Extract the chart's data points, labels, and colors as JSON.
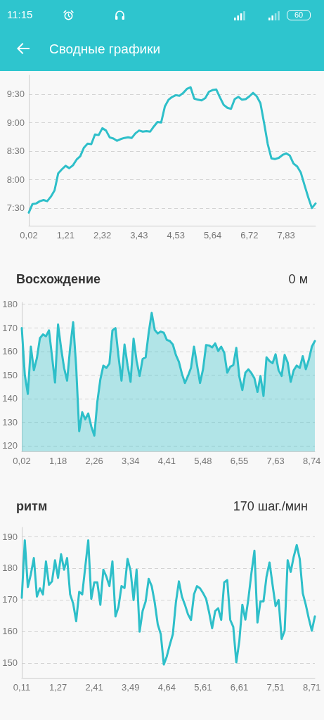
{
  "chart_data": [
    {
      "type": "line",
      "title": "Сводные графики",
      "annotations": [
        "11:15",
        "60"
      ],
      "categories": [
        "0,02",
        null,
        null,
        null,
        null,
        null,
        null,
        null,
        null,
        null,
        "1,21",
        null,
        null,
        null,
        null,
        null,
        null,
        null,
        null,
        null,
        "2,32",
        null,
        null,
        null,
        null,
        null,
        null,
        null,
        null,
        null,
        "3,43",
        null,
        null,
        null,
        null,
        null,
        null,
        null,
        null,
        null,
        "4,53",
        null,
        null,
        null,
        null,
        null,
        null,
        null,
        null,
        null,
        "5,64",
        null,
        null,
        null,
        null,
        null,
        null,
        null,
        null,
        null,
        "6,72",
        null,
        null,
        null,
        null,
        null,
        null,
        null,
        null,
        null,
        "7,83",
        null,
        null,
        null,
        null,
        null,
        null,
        null,
        null
      ],
      "values": [
        7.42,
        7.57,
        7.58,
        7.62,
        7.64,
        7.62,
        7.7,
        7.81,
        8.11,
        8.18,
        8.24,
        8.2,
        8.25,
        8.35,
        8.41,
        8.56,
        8.63,
        8.62,
        8.79,
        8.78,
        8.9,
        8.86,
        8.74,
        8.72,
        8.68,
        8.71,
        8.73,
        8.74,
        8.73,
        8.81,
        8.86,
        8.84,
        8.85,
        8.84,
        8.93,
        9.01,
        9.0,
        9.28,
        9.4,
        9.45,
        9.48,
        9.47,
        9.52,
        9.59,
        9.62,
        9.42,
        9.4,
        9.39,
        9.43,
        9.54,
        9.57,
        9.58,
        9.44,
        9.31,
        9.26,
        9.24,
        9.41,
        9.45,
        9.4,
        9.41,
        9.46,
        9.52,
        9.46,
        9.34,
        8.99,
        8.62,
        8.37,
        8.36,
        8.38,
        8.43,
        8.46,
        8.42,
        8.28,
        8.23,
        8.12,
        7.9,
        7.69,
        7.5,
        7.58
      ],
      "color": "#2ebfc9",
      "ylim": [
        7.19,
        9.83
      ],
      "yticks": [
        {
          "value": 7.5,
          "label": "7:30"
        },
        {
          "value": 8,
          "label": "8:00"
        },
        {
          "value": 8.5,
          "label": "8:30"
        },
        {
          "value": 9,
          "label": "9:00"
        },
        {
          "value": 9.5,
          "label": "9:30"
        }
      ],
      "grid": "y",
      "marker": "none",
      "line_style": "solid"
    },
    {
      "type": "area",
      "title": "Восхождение",
      "subtitle": "0 м",
      "categories": [
        "0,02",
        null,
        null,
        null,
        null,
        null,
        null,
        null,
        null,
        null,
        null,
        null,
        "1,18",
        null,
        null,
        null,
        null,
        null,
        null,
        null,
        null,
        null,
        null,
        null,
        "2,26",
        null,
        null,
        null,
        null,
        null,
        null,
        null,
        null,
        null,
        null,
        null,
        "3,34",
        null,
        null,
        null,
        null,
        null,
        null,
        null,
        null,
        null,
        null,
        null,
        "4,41",
        null,
        null,
        null,
        null,
        null,
        null,
        null,
        null,
        null,
        null,
        null,
        "5,48",
        null,
        null,
        null,
        null,
        null,
        null,
        null,
        null,
        null,
        null,
        null,
        "6,55",
        null,
        null,
        null,
        null,
        null,
        null,
        null,
        null,
        null,
        null,
        null,
        "7,63",
        null,
        null,
        null,
        null,
        null,
        null,
        null,
        null,
        null,
        null,
        null,
        "8,74",
        null
      ],
      "values": [
        169.9,
        150.0,
        142.0,
        162.0,
        152.0,
        157.2,
        165.6,
        167.2,
        166.4,
        168.9,
        158.0,
        146.8,
        171.4,
        161.5,
        153.0,
        147.6,
        161.5,
        172.4,
        153.5,
        126.2,
        134.2,
        131.2,
        133.7,
        128.2,
        124.3,
        138.6,
        148.1,
        154.0,
        153.0,
        154.8,
        168.9,
        169.9,
        158.0,
        147.6,
        162.9,
        154.2,
        147.1,
        165.4,
        156.0,
        149.6,
        156.8,
        157.5,
        167.9,
        176.3,
        169.1,
        167.6,
        168.4,
        167.9,
        164.9,
        164.4,
        162.9,
        158.5,
        155.6,
        150.5,
        146.6,
        149.6,
        153.0,
        162.0,
        154.3,
        146.6,
        152.5,
        162.7,
        162.5,
        161.7,
        163.4,
        160.2,
        162.0,
        159.5,
        151.0,
        153.5,
        154.2,
        161.5,
        149.3,
        143.6,
        151.0,
        152.4,
        150.8,
        148.6,
        142.8,
        149.6,
        141.1,
        157.5,
        155.9,
        155.0,
        158.8,
        152.0,
        149.6,
        158.5,
        155.3,
        147.1,
        152.0,
        154.0,
        153.0,
        158.0,
        152.5,
        156.5,
        162.0,
        164.4
      ],
      "color": "#2ebfc9",
      "ylim": [
        117.6,
        180.8
      ],
      "yticks": [
        120,
        130,
        140,
        150,
        160,
        170,
        180
      ],
      "grid": "y",
      "marker": "none",
      "line_style": "solid"
    },
    {
      "type": "line",
      "title": "ритм",
      "subtitle": "170 шаг./мин",
      "categories": [
        "0,11",
        null,
        null,
        null,
        null,
        null,
        null,
        null,
        null,
        null,
        null,
        null,
        "1,27",
        null,
        null,
        null,
        null,
        null,
        null,
        null,
        null,
        null,
        null,
        null,
        "2,41",
        null,
        null,
        null,
        null,
        null,
        null,
        null,
        null,
        null,
        null,
        null,
        "3,49",
        null,
        null,
        null,
        null,
        null,
        null,
        null,
        null,
        null,
        null,
        null,
        "4,64",
        null,
        null,
        null,
        null,
        null,
        null,
        null,
        null,
        null,
        null,
        null,
        "5,61",
        null,
        null,
        null,
        null,
        null,
        null,
        null,
        null,
        null,
        null,
        null,
        "6,61",
        null,
        null,
        null,
        null,
        null,
        null,
        null,
        null,
        null,
        null,
        null,
        "7,51",
        null,
        null,
        null,
        null,
        null,
        null,
        null,
        null,
        null,
        null,
        null,
        "8,71",
        null
      ],
      "values": [
        170.6,
        188.8,
        174.0,
        178.1,
        183.2,
        171.0,
        173.6,
        171.7,
        182.1,
        174.7,
        175.8,
        182.5,
        176.9,
        184.4,
        179.5,
        183.2,
        171.7,
        168.8,
        163.2,
        172.5,
        171.7,
        180.3,
        188.8,
        170.3,
        175.5,
        175.5,
        168.4,
        179.5,
        177.3,
        174.3,
        182.1,
        164.7,
        167.7,
        174.3,
        173.7,
        182.9,
        179.2,
        169.9,
        179.5,
        159.9,
        166.5,
        169.5,
        176.6,
        174.3,
        169.1,
        162.2,
        159.1,
        149.5,
        152.1,
        155.8,
        159.1,
        169.1,
        175.8,
        171.0,
        168.4,
        165.4,
        163.6,
        171.7,
        174.3,
        173.6,
        172.1,
        170.3,
        166.0,
        161.0,
        166.4,
        167.3,
        163.6,
        175.5,
        176.2,
        163.6,
        161.4,
        150.2,
        156.9,
        168.4,
        163.7,
        170.3,
        178.4,
        185.5,
        162.8,
        169.5,
        169.5,
        177.3,
        181.8,
        174.7,
        168.0,
        169.9,
        157.6,
        160.2,
        182.5,
        178.8,
        183.6,
        187.3,
        182.9,
        172.1,
        168.4,
        164.0,
        160.2,
        164.7
      ],
      "color": "#2ebfc9",
      "ylim": [
        145.3,
        192.9
      ],
      "yticks": [
        150,
        160,
        170,
        180,
        190
      ],
      "grid": "y",
      "marker": "none",
      "line_style": "solid"
    }
  ]
}
